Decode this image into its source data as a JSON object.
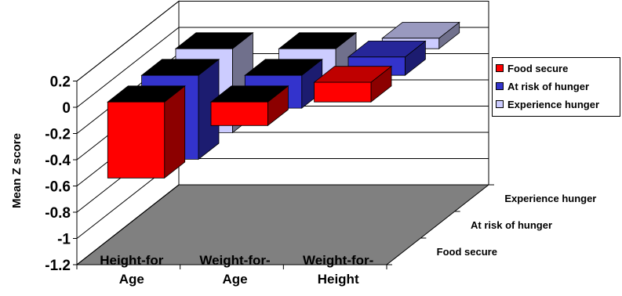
{
  "chart_data": {
    "type": "bar",
    "title": "",
    "ylabel": "Mean Z score",
    "xlabel": "",
    "ylim": [
      -1.2,
      0.2
    ],
    "yticks": [
      "0.2",
      "0",
      "-0.2",
      "-0.4",
      "-0.6",
      "-0.8",
      "-1",
      "-1.2"
    ],
    "categories": [
      {
        "line1": "Height-for",
        "line2": "Age"
      },
      {
        "line1": "Weight-for-",
        "line2": "Age"
      },
      {
        "line1": "Weight-for-",
        "line2": "Height"
      }
    ],
    "depth_labels": [
      "Experience hunger",
      "At risk of hunger",
      "Food secure"
    ],
    "series": [
      {
        "name": "Food secure",
        "color": "#ff0000",
        "values": [
          -0.58,
          -0.18,
          0.15
        ]
      },
      {
        "name": "At risk of hunger",
        "color": "#3333cc",
        "values": [
          -0.64,
          -0.25,
          0.14
        ]
      },
      {
        "name": "Experience hunger",
        "color": "#ccccff",
        "values": [
          -0.64,
          -0.23,
          0.08
        ]
      }
    ],
    "legend_position": "right",
    "grid": true,
    "floor_color": "#808080",
    "top_face_color": "#000000"
  }
}
